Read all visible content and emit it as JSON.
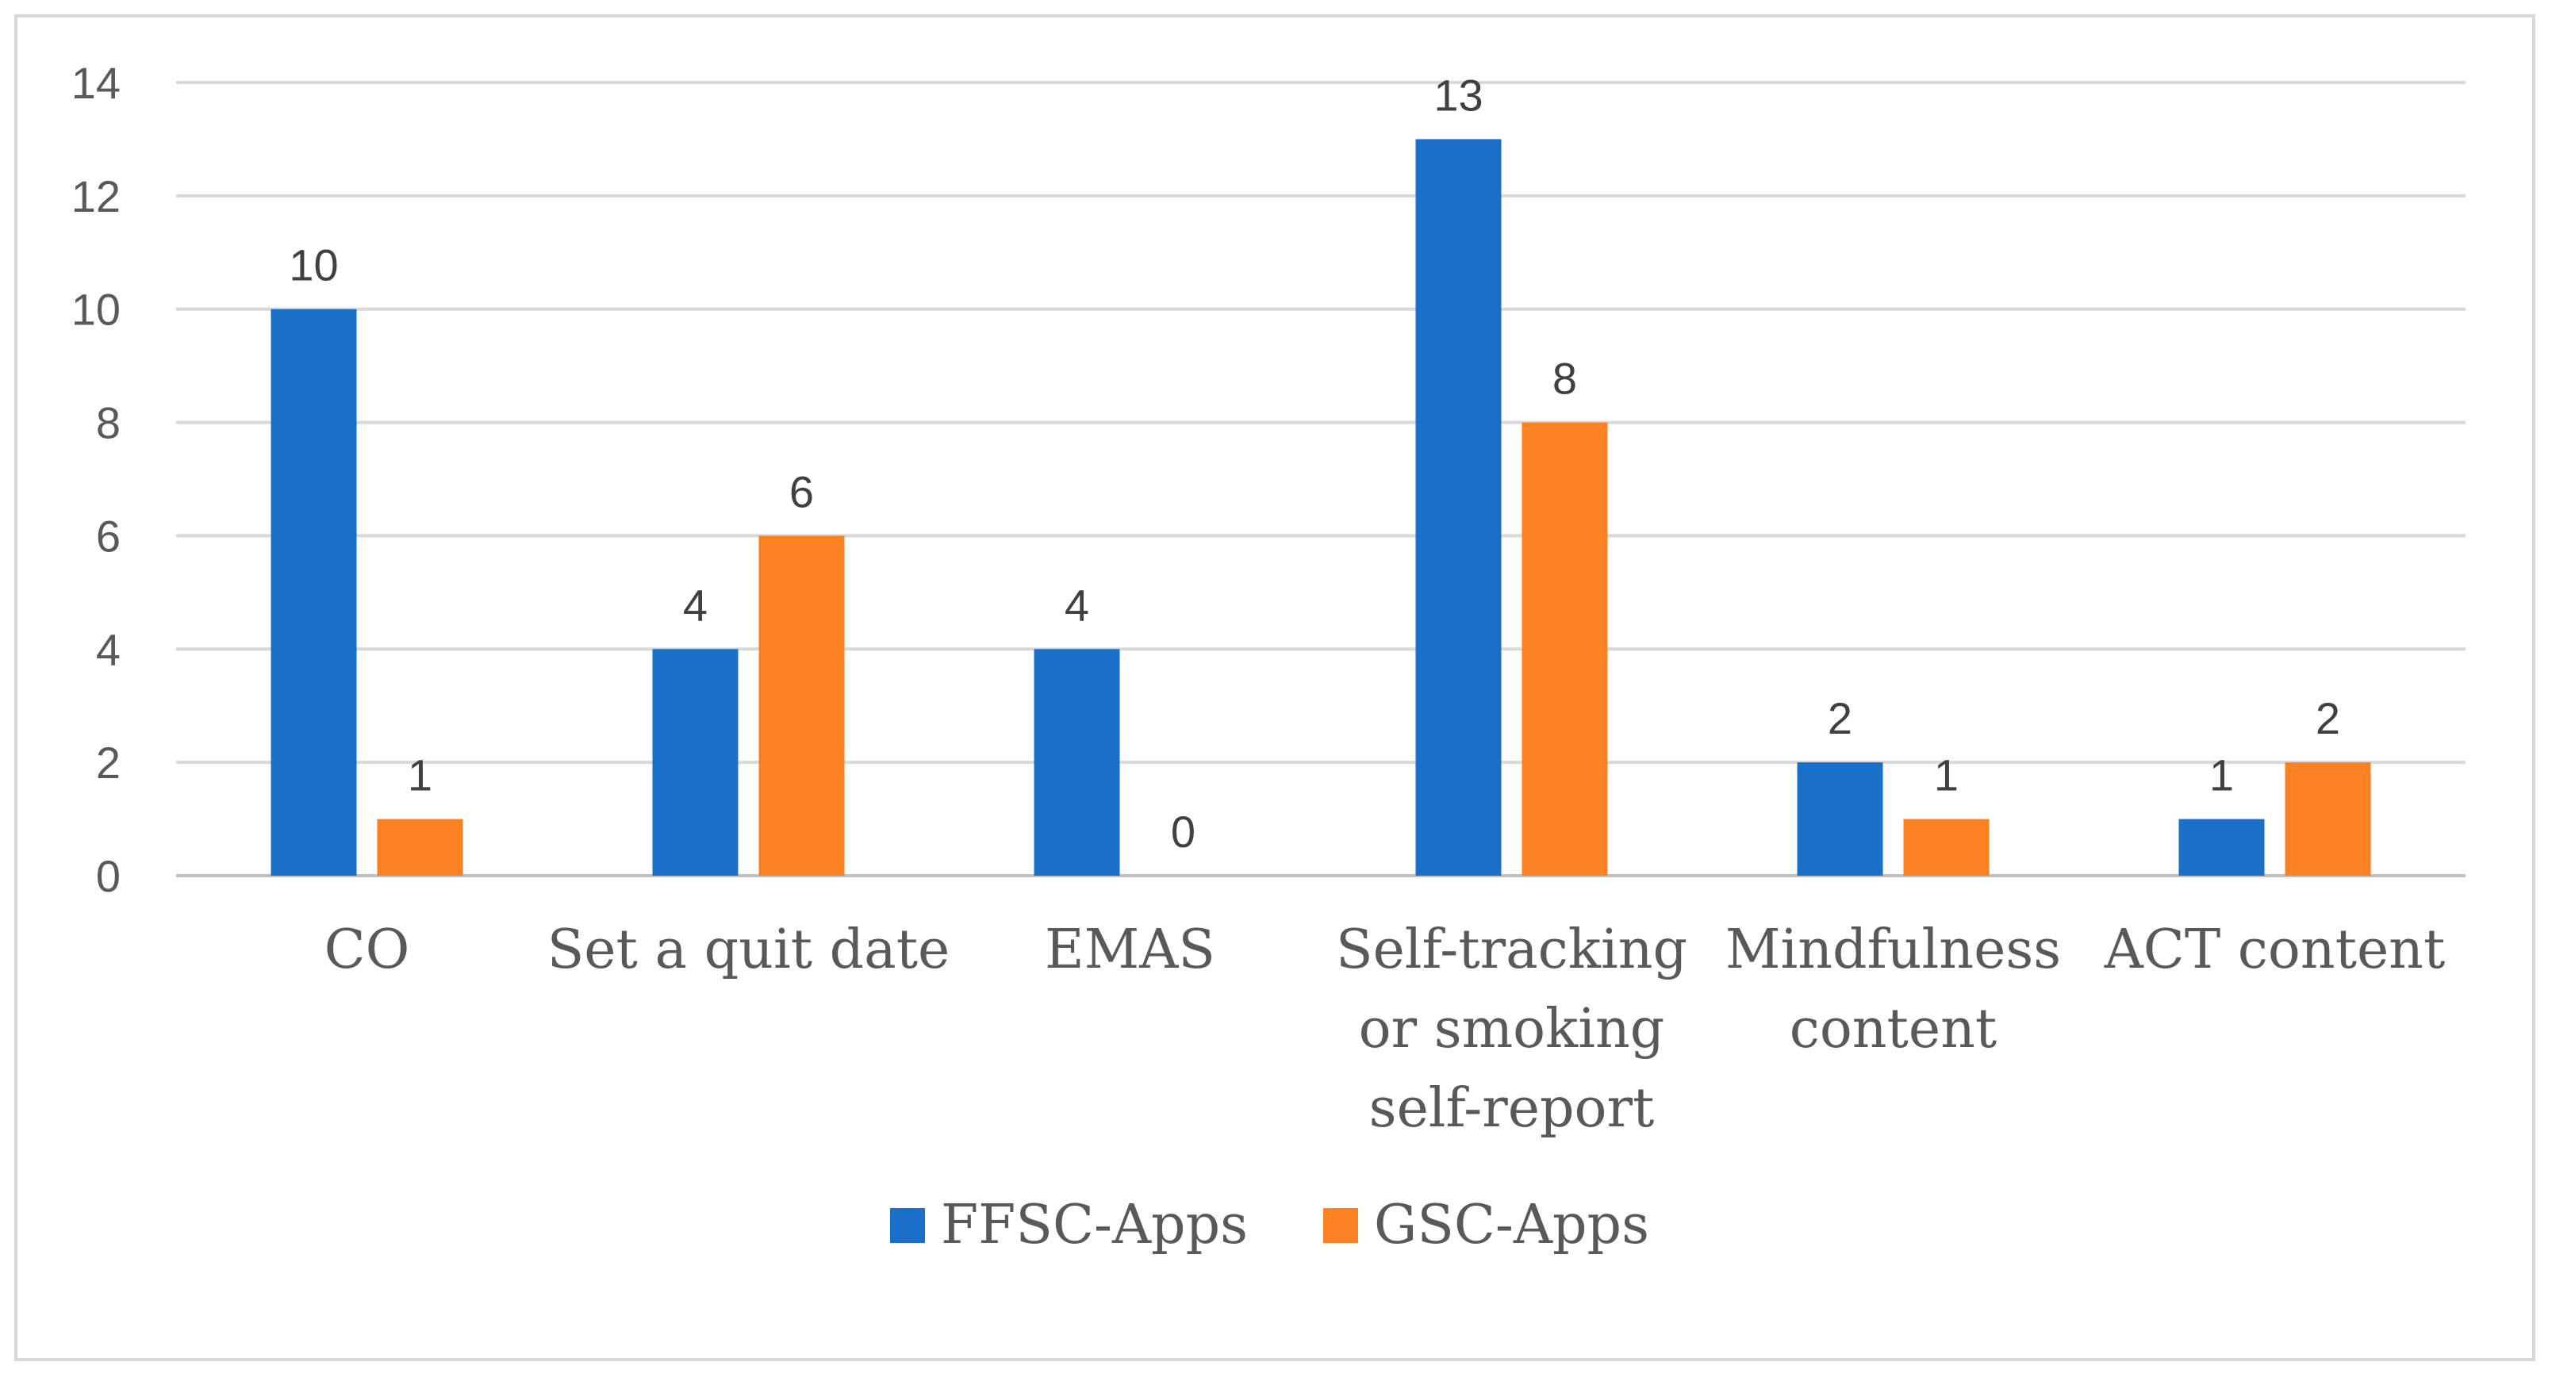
{
  "chart_data": {
    "type": "bar",
    "title": "",
    "xlabel": "",
    "ylabel": "",
    "ylim": [
      0,
      14
    ],
    "yticks": [
      0,
      2,
      4,
      6,
      8,
      10,
      12,
      14
    ],
    "grid": true,
    "legend_position": "bottom",
    "categories": [
      [
        "CO"
      ],
      [
        "Set a quit date"
      ],
      [
        "EMAS"
      ],
      [
        "Self-tracking",
        "or smoking",
        "self-report"
      ],
      [
        "Mindfulness",
        "content"
      ],
      [
        "ACT content"
      ]
    ],
    "series": [
      {
        "name": "FFSC-Apps",
        "color": "#1a70c8",
        "values": [
          10,
          4,
          4,
          13,
          2,
          1
        ]
      },
      {
        "name": "GSC-Apps",
        "color": "#fb8122",
        "values": [
          1,
          6,
          0,
          8,
          1,
          2
        ]
      }
    ]
  }
}
